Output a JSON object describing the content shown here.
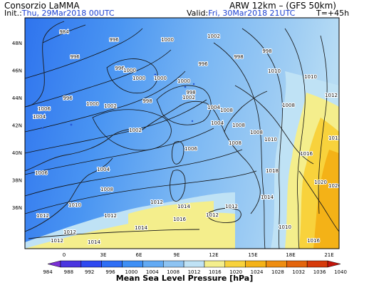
{
  "header": {
    "producer": "Consorzio LaMMA",
    "model": "ARW 12km – (GFS 50km)",
    "init_label": "Init.:",
    "init_value": "Thu, 29Mar2018 00UTC",
    "valid_label": "Valid:",
    "valid_value": "Fri, 30Mar2018 21UTC",
    "forecast_step": "T=+45h"
  },
  "map": {
    "lat_labels": [
      "48N",
      "46N",
      "44N",
      "42N",
      "40N",
      "38N",
      "36N"
    ],
    "lon_labels": [
      "0",
      "3E",
      "6E",
      "9E",
      "12E",
      "15E",
      "18E",
      "21E"
    ],
    "isobar_labels": [
      "984",
      "996",
      "1000",
      "1002",
      "998",
      "996",
      "996",
      "1000",
      "1000",
      "996",
      "998",
      "1000",
      "1000",
      "1002",
      "1008",
      "1010",
      "1010",
      "1012",
      "998",
      "998",
      "996",
      "1000",
      "1002",
      "1004",
      "1006",
      "1002",
      "1008",
      "1004",
      "1004",
      "1008",
      "1008",
      "1010",
      "1012",
      "1016",
      "1006",
      "1004",
      "1006",
      "1008",
      "1008",
      "1010",
      "1012",
      "1012",
      "1014",
      "1016",
      "1020",
      "1020",
      "1012",
      "1012",
      "1014",
      "1018",
      "1014",
      "1012",
      "1014",
      "1012",
      "1010",
      "1016",
      "1012"
    ]
  },
  "colorbar": {
    "ticks": [
      "984",
      "988",
      "992",
      "996",
      "1000",
      "1004",
      "1008",
      "1012",
      "1016",
      "1020",
      "1024",
      "1028",
      "1032",
      "1036",
      "1040"
    ],
    "colors": [
      "#7b2fd6",
      "#4a35e0",
      "#2f49f0",
      "#2e6ef5",
      "#3e8ff5",
      "#62aaf4",
      "#8dc3f2",
      "#bfe2f5",
      "#f4ee8c",
      "#f8d23c",
      "#f4b217",
      "#ee8d10",
      "#e3640c",
      "#d63a0a",
      "#c4140a"
    ],
    "title": "Mean Sea Level Pressure [hPa]"
  }
}
